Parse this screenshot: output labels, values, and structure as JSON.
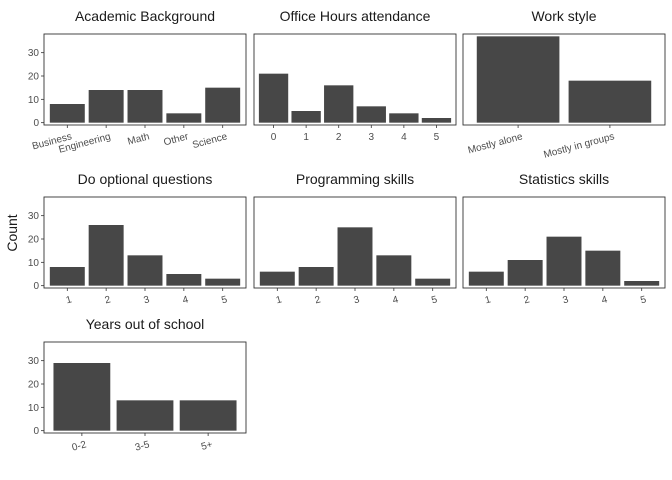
{
  "ylabel": "Count",
  "chart_data": [
    {
      "type": "bar",
      "title": "Academic Background",
      "categories": [
        "Business",
        "Engineering",
        "Math",
        "Other",
        "Science"
      ],
      "values": [
        8,
        14,
        14,
        4,
        15
      ],
      "ylim": [
        -1,
        38
      ],
      "yticks": [
        0,
        10,
        20,
        30
      ],
      "rotate_labels": true
    },
    {
      "type": "bar",
      "title": "Office Hours attendance",
      "categories": [
        "0",
        "1",
        "2",
        "3",
        "4",
        "5"
      ],
      "values": [
        21,
        5,
        16,
        7,
        4,
        2
      ],
      "ylim": [
        -1,
        38
      ],
      "yticks": [
        0,
        10,
        20,
        30
      ],
      "rotate_labels": false
    },
    {
      "type": "bar",
      "title": "Work style",
      "categories": [
        "Mostly alone",
        "Mostly in groups"
      ],
      "values": [
        37,
        18
      ],
      "ylim": [
        -1,
        38
      ],
      "yticks": [
        0,
        10,
        20,
        30
      ],
      "rotate_labels": true
    },
    {
      "type": "bar",
      "title": "Do optional questions",
      "categories": [
        "1",
        "2",
        "3",
        "4",
        "5"
      ],
      "values": [
        8,
        26,
        13,
        5,
        3
      ],
      "ylim": [
        -1,
        38
      ],
      "yticks": [
        0,
        10,
        20,
        30
      ],
      "rotate_labels": true
    },
    {
      "type": "bar",
      "title": "Programming skills",
      "categories": [
        "1",
        "2",
        "3",
        "4",
        "5"
      ],
      "values": [
        6,
        8,
        25,
        13,
        3
      ],
      "ylim": [
        -1,
        38
      ],
      "yticks": [
        0,
        10,
        20,
        30
      ],
      "rotate_labels": true
    },
    {
      "type": "bar",
      "title": "Statistics skills",
      "categories": [
        "1",
        "2",
        "3",
        "4",
        "5"
      ],
      "values": [
        6,
        11,
        21,
        15,
        2
      ],
      "ylim": [
        -1,
        38
      ],
      "yticks": [
        0,
        10,
        20,
        30
      ],
      "rotate_labels": true
    },
    {
      "type": "bar",
      "title": "Years out of school",
      "categories": [
        "0-2",
        "3-5",
        "5+"
      ],
      "values": [
        29,
        13,
        13
      ],
      "ylim": [
        -1,
        38
      ],
      "yticks": [
        0,
        10,
        20,
        30
      ],
      "rotate_labels": true
    }
  ],
  "colors": {
    "bar": "#474747",
    "frame": "#333333",
    "text": "#1a1a1a",
    "tick_text": "#4d4d4d"
  }
}
